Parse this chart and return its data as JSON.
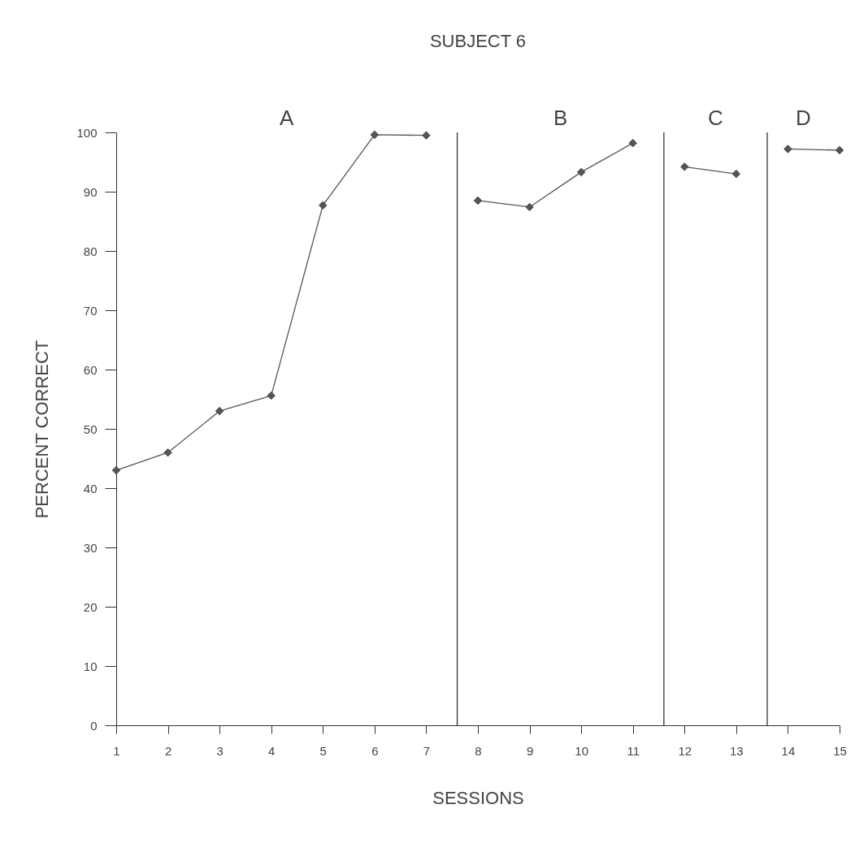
{
  "chart_data": {
    "type": "line",
    "title": "SUBJECT 6",
    "xlabel": "SESSIONS",
    "ylabel": "PERCENT CORRECT",
    "xlim": [
      1,
      15
    ],
    "xticks": [
      1,
      2,
      3,
      4,
      5,
      6,
      7,
      8,
      9,
      10,
      11,
      12,
      13,
      14,
      15
    ],
    "ylim": [
      0,
      100
    ],
    "yticks": [
      0,
      10,
      20,
      30,
      40,
      50,
      60,
      70,
      80,
      90,
      100
    ],
    "series": [
      {
        "color": "#555555",
        "x": [
          1,
          2,
          3,
          4,
          5,
          6,
          7
        ],
        "values": [
          43,
          46,
          53,
          55.6,
          87.7,
          99.6,
          99.5
        ]
      },
      {
        "color": "#555555",
        "x": [
          8,
          9,
          10,
          11
        ],
        "values": [
          88.5,
          87.4,
          93.3,
          98.2
        ]
      },
      {
        "color": "#555555",
        "x": [
          12,
          13
        ],
        "values": [
          94.2,
          93
        ]
      },
      {
        "color": "#555555",
        "x": [
          14,
          15
        ],
        "values": [
          97.2,
          97
        ]
      }
    ],
    "ref_lines": [
      {
        "axis": "x",
        "value": 7.6,
        "label": null,
        "color": "#333333"
      },
      {
        "axis": "x",
        "value": 11.6,
        "label": null,
        "color": "#333333"
      },
      {
        "axis": "x",
        "value": 13.6,
        "label": null,
        "color": "#333333"
      }
    ],
    "annotations": [
      "A",
      "B",
      "C",
      "D"
    ],
    "marker": "diamond",
    "line_style": "solid",
    "grid": false
  }
}
